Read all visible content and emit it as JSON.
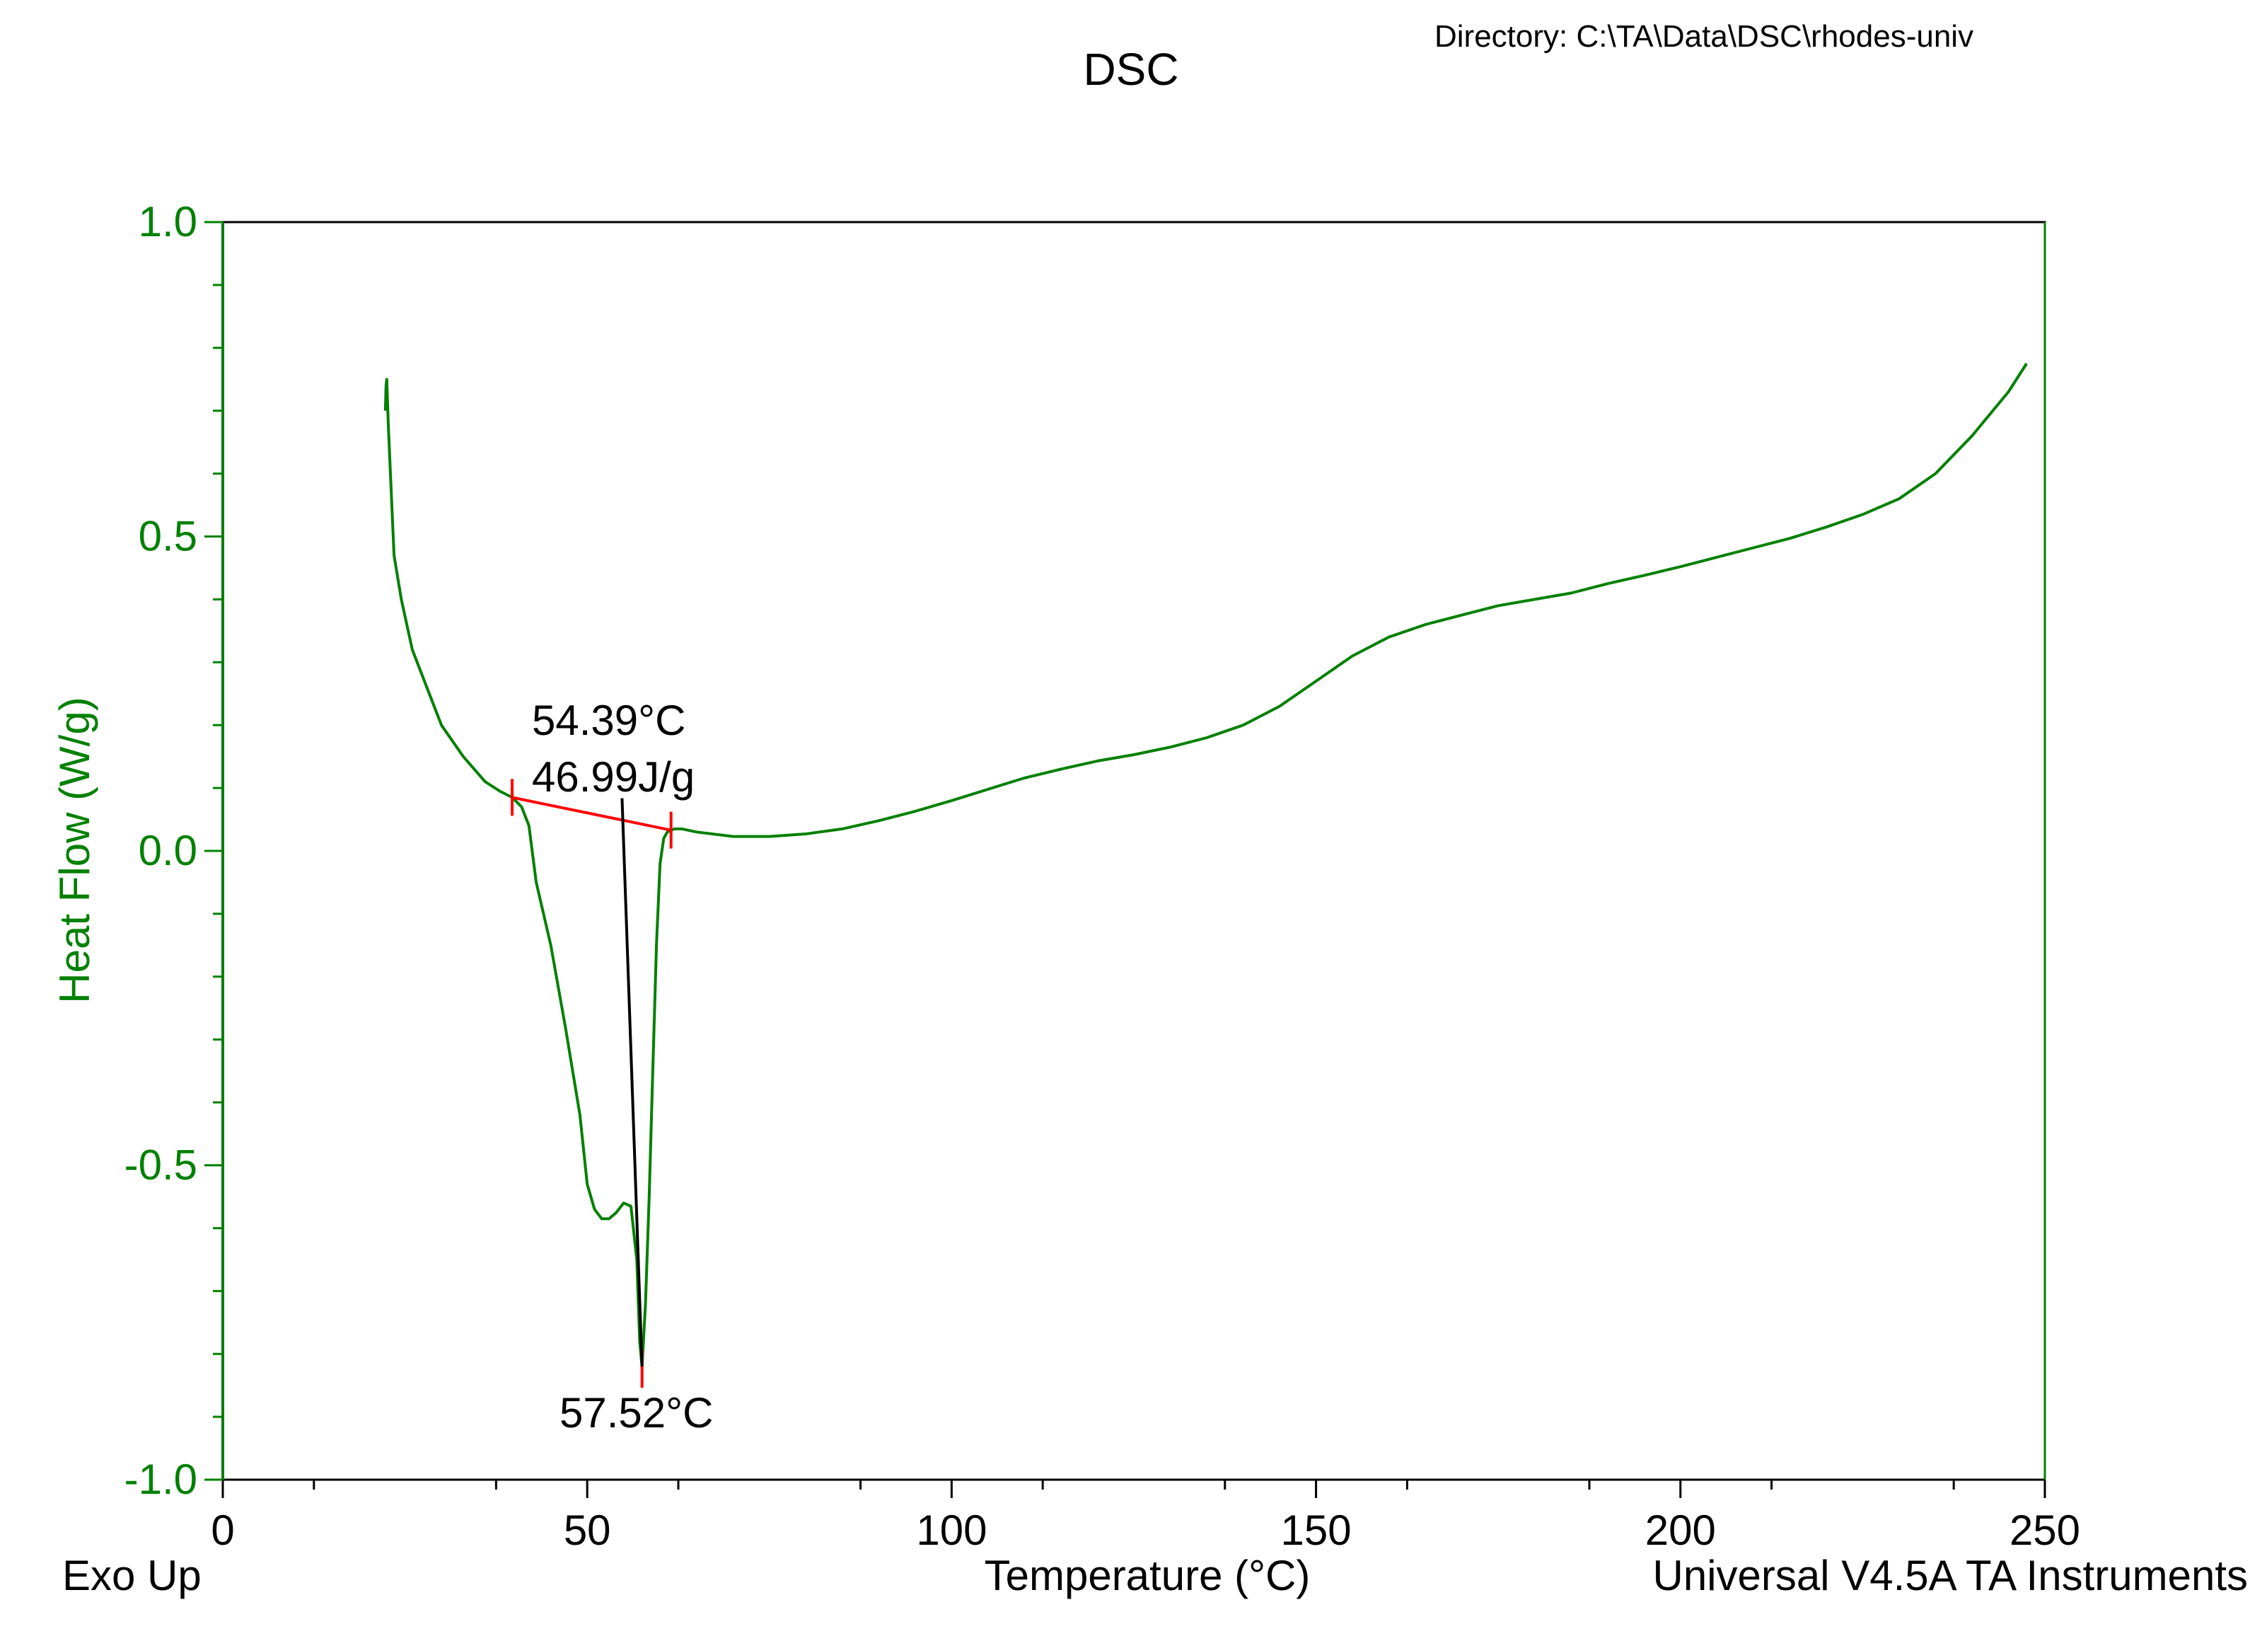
{
  "header": {
    "title": "DSC",
    "directory": "Directory: C:\\TA\\Data\\DSC\\rhodes-univ"
  },
  "footer": {
    "left": "Exo Up",
    "right": "Universal V4.5A TA Instruments"
  },
  "colors": {
    "curve": "#008000",
    "axis_label": "#008000",
    "baseline": "#ff0000",
    "annotation": "#000000"
  },
  "chart_data": {
    "type": "line",
    "title": "DSC",
    "xlabel": "Temperature (°C)",
    "ylabel": "Heat Flow (W/g)",
    "xlim": [
      0,
      250
    ],
    "ylim": [
      -1.0,
      1.0
    ],
    "x_ticks": [
      0,
      50,
      100,
      150,
      200,
      250
    ],
    "x_tick_labels": [
      "0",
      "50",
      "100",
      "150",
      "200",
      "250"
    ],
    "y_ticks": [
      1.0,
      0.5,
      0.0,
      -0.5,
      -1.0
    ],
    "y_tick_labels": [
      "1.0",
      "0.5",
      "0.0",
      "-0.5",
      "-1.0"
    ],
    "grid": false,
    "series": [
      {
        "x": [
          22.3,
          22.4,
          22.5,
          22.7,
          23.0,
          23.5,
          24.5,
          26,
          28,
          30,
          33,
          36,
          38,
          39.7,
          41,
          42,
          43,
          45,
          47,
          49,
          50,
          51,
          52,
          53,
          54,
          55,
          56,
          56.8,
          57.2,
          57.52,
          58,
          58.5,
          59,
          59.5,
          60,
          60.5,
          61,
          61.5,
          62,
          63,
          65,
          70,
          75,
          80,
          85,
          90,
          95,
          100,
          105,
          110,
          115,
          120,
          125,
          130,
          135,
          140,
          145,
          150,
          155,
          160,
          165,
          170,
          175,
          180,
          185,
          190,
          195,
          200,
          205,
          210,
          215,
          220,
          225,
          230,
          235,
          240,
          245,
          247.5
        ],
        "y": [
          0.7,
          0.74,
          0.75,
          0.68,
          0.6,
          0.47,
          0.4,
          0.32,
          0.26,
          0.2,
          0.15,
          0.11,
          0.095,
          0.085,
          0.07,
          0.04,
          -0.05,
          -0.15,
          -0.28,
          -0.42,
          -0.53,
          -0.57,
          -0.585,
          -0.585,
          -0.575,
          -0.56,
          -0.565,
          -0.65,
          -0.78,
          -0.82,
          -0.72,
          -0.55,
          -0.35,
          -0.15,
          -0.02,
          0.02,
          0.03,
          0.033,
          0.035,
          0.035,
          0.03,
          0.023,
          0.023,
          0.027,
          0.035,
          0.048,
          0.063,
          0.08,
          0.098,
          0.116,
          0.13,
          0.143,
          0.153,
          0.165,
          0.18,
          0.2,
          0.23,
          0.27,
          0.31,
          0.34,
          0.36,
          0.375,
          0.39,
          0.4,
          0.41,
          0.425,
          0.438,
          0.452,
          0.467,
          0.482,
          0.497,
          0.515,
          0.535,
          0.56,
          0.6,
          0.66,
          0.73,
          0.775
        ]
      }
    ],
    "baseline": {
      "x": [
        39.7,
        61.5
      ],
      "y": [
        0.085,
        0.033
      ]
    },
    "peak": {
      "x": 57.52,
      "y": -0.82
    },
    "annotations": [
      {
        "text": "54.39°C",
        "x": 54.39
      },
      {
        "text": "46.99J/g"
      },
      {
        "text": "57.52°C",
        "x": 57.52
      }
    ]
  }
}
